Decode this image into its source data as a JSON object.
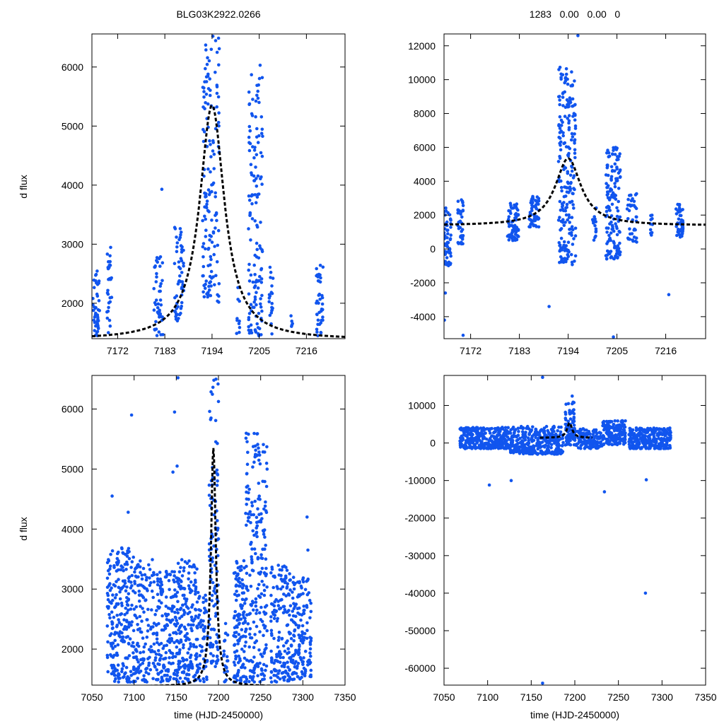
{
  "titles": {
    "left": "BLG03K2922.0266",
    "right": "1283   0.00   0.00   0"
  },
  "ylabel": "d flux",
  "xlabel": "time (HJD-2450000)",
  "colors": {
    "points": "#1155ee",
    "model": "#000000",
    "axes": "#000000"
  },
  "chart_data": [
    {
      "name": "top-left-zoom",
      "type": "scatter",
      "xlim": [
        7166,
        7225
      ],
      "ylim": [
        1400,
        6560
      ],
      "xticks": [
        7172,
        7183,
        7194,
        7205,
        7216
      ],
      "yticks": [
        2000,
        3000,
        4000,
        5000,
        6000
      ],
      "model": {
        "t0": 7194,
        "peak": 5350,
        "base": 1380,
        "width": 3.5
      },
      "clusters": [
        {
          "x0": 7166.2,
          "x1": 7167.8,
          "n": 45,
          "ymin": 1450,
          "ymax": 2550
        },
        {
          "x0": 7169.5,
          "x1": 7170.6,
          "n": 30,
          "ymin": 1500,
          "ymax": 2950
        },
        {
          "x0": 7180.4,
          "x1": 7182.6,
          "n": 45,
          "ymin": 1450,
          "ymax": 2800
        },
        {
          "x0": 7185.2,
          "x1": 7187.4,
          "n": 55,
          "ymin": 1700,
          "ymax": 3300
        },
        {
          "x0": 7191.8,
          "x1": 7194.0,
          "n": 100,
          "ymin": 2100,
          "ymax": 6500
        },
        {
          "x0": 7194.0,
          "x1": 7195.7,
          "n": 50,
          "ymin": 2000,
          "ymax": 6500
        },
        {
          "x0": 7199.5,
          "x1": 7200.5,
          "n": 10,
          "ymin": 1450,
          "ymax": 2300
        },
        {
          "x0": 7202.5,
          "x1": 7205.8,
          "n": 140,
          "ymin": 1450,
          "ymax": 6050
        },
        {
          "x0": 7207.3,
          "x1": 7208.3,
          "n": 20,
          "ymin": 1450,
          "ymax": 2650
        },
        {
          "x0": 7212.3,
          "x1": 7212.8,
          "n": 5,
          "ymin": 1600,
          "ymax": 1800
        },
        {
          "x0": 7218.3,
          "x1": 7219.9,
          "n": 40,
          "ymin": 1450,
          "ymax": 2700
        }
      ],
      "outliers": [
        [
          7182.3,
          3930
        ],
        [
          7205.2,
          6030
        ],
        [
          7194.2,
          6520
        ]
      ]
    },
    {
      "name": "top-right-zoom",
      "type": "scatter",
      "xlim": [
        7166,
        7225
      ],
      "ylim": [
        -5300,
        12700
      ],
      "xticks": [
        7172,
        7183,
        7194,
        7205,
        7216
      ],
      "yticks": [
        -4000,
        -2000,
        0,
        2000,
        4000,
        6000,
        8000,
        10000,
        12000
      ],
      "model": {
        "t0": 7194,
        "peak": 5350,
        "base": 1380,
        "width": 3.5
      },
      "clusters": [
        {
          "x0": 7166.0,
          "x1": 7167.6,
          "n": 55,
          "ymin": -1000,
          "ymax": 2600
        },
        {
          "x0": 7169.1,
          "x1": 7170.4,
          "n": 40,
          "ymin": 300,
          "ymax": 3000
        },
        {
          "x0": 7180.3,
          "x1": 7182.8,
          "n": 70,
          "ymin": 500,
          "ymax": 2700
        },
        {
          "x0": 7185.2,
          "x1": 7187.4,
          "n": 60,
          "ymin": 1300,
          "ymax": 3300
        },
        {
          "x0": 7191.8,
          "x1": 7194.0,
          "n": 130,
          "ymin": -800,
          "ymax": 10800
        },
        {
          "x0": 7194.0,
          "x1": 7195.7,
          "n": 90,
          "ymin": -1000,
          "ymax": 10500
        },
        {
          "x0": 7199.5,
          "x1": 7200.5,
          "n": 15,
          "ymin": 400,
          "ymax": 2800
        },
        {
          "x0": 7202.5,
          "x1": 7205.8,
          "n": 150,
          "ymin": -600,
          "ymax": 6000
        },
        {
          "x0": 7207.3,
          "x1": 7209.5,
          "n": 40,
          "ymin": 400,
          "ymax": 3300
        },
        {
          "x0": 7212.5,
          "x1": 7213.3,
          "n": 10,
          "ymin": 500,
          "ymax": 2000
        },
        {
          "x0": 7218.3,
          "x1": 7219.9,
          "n": 50,
          "ymin": 700,
          "ymax": 2700
        }
      ],
      "outliers": [
        [
          7166.1,
          -4200
        ],
        [
          7166.3,
          -2600
        ],
        [
          7189.7,
          -3400
        ],
        [
          7204.2,
          -5200
        ],
        [
          7196.2,
          12600
        ],
        [
          7216.7,
          -2700
        ],
        [
          7170.3,
          -5100
        ]
      ]
    },
    {
      "name": "bottom-left-full",
      "type": "scatter",
      "xlim": [
        7050,
        7350
      ],
      "ylim": [
        1400,
        6560
      ],
      "xticks": [
        7050,
        7100,
        7150,
        7200,
        7250,
        7300,
        7350
      ],
      "yticks": [
        2000,
        3000,
        4000,
        5000,
        6000
      ],
      "model": {
        "t0": 7194,
        "peak": 5350,
        "base": 1380,
        "width": 3.5
      },
      "clusters": [
        {
          "x0": 7068,
          "x1": 7082,
          "n": 110,
          "ymin": 1450,
          "ymax": 3700
        },
        {
          "x0": 7082,
          "x1": 7100,
          "n": 130,
          "ymin": 1450,
          "ymax": 3700
        },
        {
          "x0": 7100,
          "x1": 7125,
          "n": 140,
          "ymin": 1450,
          "ymax": 3500
        },
        {
          "x0": 7125,
          "x1": 7150,
          "n": 160,
          "ymin": 1450,
          "ymax": 3300
        },
        {
          "x0": 7150,
          "x1": 7175,
          "n": 190,
          "ymin": 1450,
          "ymax": 3500
        },
        {
          "x0": 7175,
          "x1": 7187,
          "n": 60,
          "ymin": 1450,
          "ymax": 3000
        },
        {
          "x0": 7189,
          "x1": 7200,
          "n": 110,
          "ymin": 1700,
          "ymax": 6500
        },
        {
          "x0": 7206,
          "x1": 7212,
          "n": 20,
          "ymin": 1450,
          "ymax": 2500
        },
        {
          "x0": 7218,
          "x1": 7232,
          "n": 120,
          "ymin": 1450,
          "ymax": 3500
        },
        {
          "x0": 7232,
          "x1": 7258,
          "n": 230,
          "ymin": 1450,
          "ymax": 5600
        },
        {
          "x0": 7262,
          "x1": 7288,
          "n": 170,
          "ymin": 1450,
          "ymax": 3400
        },
        {
          "x0": 7288,
          "x1": 7310,
          "n": 140,
          "ymin": 1500,
          "ymax": 3200
        }
      ],
      "outliers": [
        [
          7097,
          5900
        ],
        [
          7148,
          5950
        ],
        [
          7152,
          6520
        ],
        [
          7151,
          5050
        ],
        [
          7146,
          4950
        ],
        [
          7074,
          4550
        ],
        [
          7093,
          4280
        ],
        [
          7305,
          4200
        ],
        [
          7306,
          3650
        ]
      ]
    },
    {
      "name": "bottom-right-full",
      "type": "scatter",
      "xlim": [
        7050,
        7350
      ],
      "ylim": [
        -64500,
        18000
      ],
      "xticks": [
        7050,
        7100,
        7150,
        7200,
        7250,
        7300,
        7350
      ],
      "yticks": [
        -60000,
        -50000,
        -40000,
        -30000,
        -20000,
        -10000,
        0,
        10000
      ],
      "model": {
        "t0": 7194,
        "peak": 5350,
        "base": 1380,
        "width": 3.5
      },
      "clusters": [
        {
          "x0": 7068,
          "x1": 7125,
          "n": 320,
          "ymin": -1500,
          "ymax": 4200
        },
        {
          "x0": 7125,
          "x1": 7187,
          "n": 340,
          "ymin": -3000,
          "ymax": 4500
        },
        {
          "x0": 7189,
          "x1": 7200,
          "n": 90,
          "ymin": -600,
          "ymax": 11000
        },
        {
          "x0": 7200,
          "x1": 7232,
          "n": 130,
          "ymin": -1500,
          "ymax": 3800
        },
        {
          "x0": 7232,
          "x1": 7258,
          "n": 170,
          "ymin": -500,
          "ymax": 6000
        },
        {
          "x0": 7262,
          "x1": 7310,
          "n": 280,
          "ymin": -1500,
          "ymax": 4000
        }
      ],
      "outliers": [
        [
          7163,
          17500
        ],
        [
          7102,
          -11200
        ],
        [
          7127,
          -10000
        ],
        [
          7234,
          -13000
        ],
        [
          7282,
          -9800
        ],
        [
          7281,
          -40000
        ],
        [
          7163,
          -64000
        ],
        [
          7197,
          12500
        ]
      ]
    }
  ]
}
